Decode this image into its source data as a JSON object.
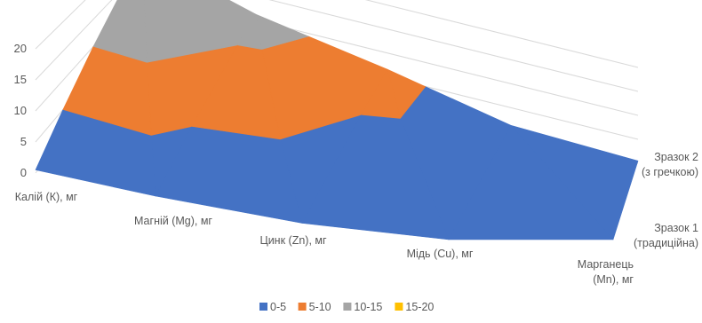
{
  "chart_data": {
    "type": "surface-3d",
    "title": "",
    "categories": [
      "Калій (К), мг",
      "Магній (Mg), мг",
      "Цинк (Zn), мг",
      "Мідь (Cu), мг",
      "Марганець (Mn), мг"
    ],
    "series": [
      {
        "name": "Зразок 1 (традиційна)",
        "values": [
          0.5,
          1.0,
          0.5,
          0.0,
          0.0
        ]
      },
      {
        "name": "Зразок 2 (з гречкою)",
        "values": [
          18.0,
          12.0,
          7.0,
          0.5,
          0.5
        ]
      }
    ],
    "zlim": [
      0,
      20
    ],
    "zticks": [
      0,
      5,
      10,
      15,
      20
    ],
    "legend": {
      "position": "bottom",
      "bands": [
        {
          "label": "0-5",
          "min": 0,
          "max": 5,
          "color": "#4472C4"
        },
        {
          "label": "5-10",
          "min": 5,
          "max": 10,
          "color": "#ED7D31"
        },
        {
          "label": "10-15",
          "min": 10,
          "max": 15,
          "color": "#A5A5A5"
        },
        {
          "label": "15-20",
          "min": 15,
          "max": 20,
          "color": "#FFC000"
        }
      ]
    },
    "grid": true
  }
}
